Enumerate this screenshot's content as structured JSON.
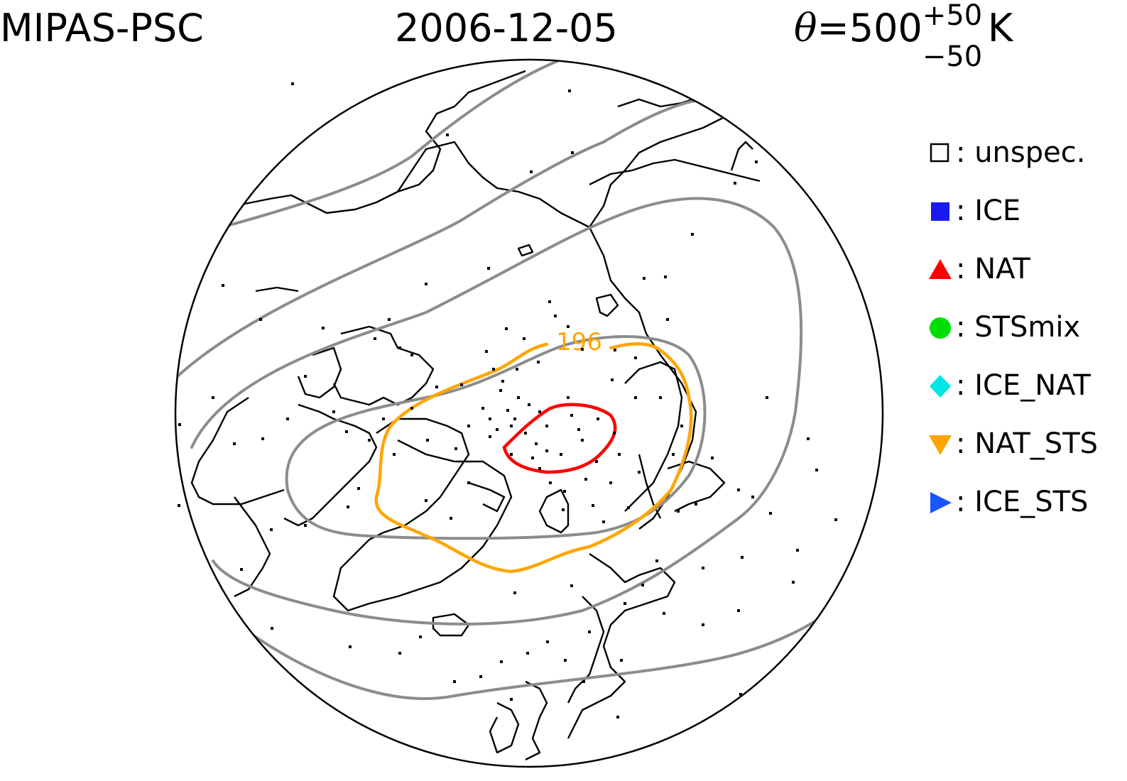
{
  "header": {
    "instrument": "MIPAS-PSC",
    "date": "2006-12-05",
    "theta_symbol": "θ",
    "theta_eq": "=500",
    "theta_plus": "+50",
    "theta_minus": "−50",
    "unit": "K"
  },
  "contour_label": "196",
  "colors": {
    "coastline": "#000000",
    "grid_contour": "#8c8c8c",
    "contour_196": "#ffa500",
    "contour_inner": "#ff0000",
    "unspec": "#000000",
    "ICE": "#1a1aee",
    "NAT": "#ff0000",
    "STSmix": "#00dd00",
    "ICE_NAT": "#00e5e5",
    "NAT_STS": "#ffa500",
    "ICE_STS": "#1a55ff"
  },
  "legend": [
    {
      "symbol": "square-open",
      "color_key": "unspec",
      "label": ": unspec."
    },
    {
      "symbol": "square-filled",
      "color_key": "ICE",
      "label": ": ICE"
    },
    {
      "symbol": "triangle-up",
      "color_key": "NAT",
      "label": ": NAT"
    },
    {
      "symbol": "circle",
      "color_key": "STSmix",
      "label": ": STSmix"
    },
    {
      "symbol": "diamond",
      "color_key": "ICE_NAT",
      "label": ": ICE_NAT"
    },
    {
      "symbol": "triangle-down",
      "color_key": "NAT_STS",
      "label": ": NAT_STS"
    },
    {
      "symbol": "triangle-right",
      "color_key": "ICE_STS",
      "label": ": ICE_STS"
    }
  ]
}
